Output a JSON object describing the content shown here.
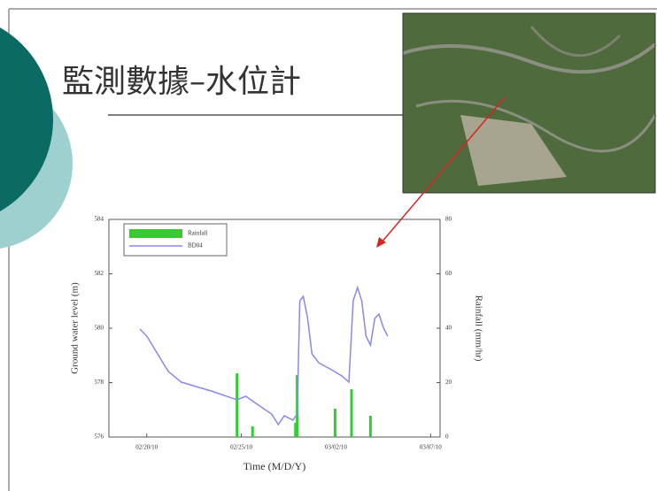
{
  "slide_title": "監測數據–水位計",
  "chart_data": {
    "type": "combo",
    "x_label": "Time (M/D/Y)",
    "y_label": "Ground water level (m)",
    "y2_label": "Rainfall (mm/hr)",
    "xlim": [
      -2,
      15.5
    ],
    "xticks": [
      {
        "value": 0,
        "label": "02/20/10"
      },
      {
        "value": 5,
        "label": "02/25/10"
      },
      {
        "value": 10,
        "label": "03/02/10"
      },
      {
        "value": 15,
        "label": "03/07/10"
      }
    ],
    "ylim": [
      576,
      584
    ],
    "yticks": [
      576,
      578,
      580,
      582,
      584
    ],
    "y2lim": [
      0,
      80
    ],
    "y2ticks": [
      0,
      20,
      40,
      60,
      80
    ],
    "legend": "upper left",
    "series": [
      {
        "name": "Rainfall",
        "type": "bar",
        "axis": "y2",
        "color": "#33cc33",
        "x": [
          4.77,
          5.59,
          7.86,
          7.95,
          9.95,
          10.82,
          11.82
        ],
        "values": [
          23.4,
          3.9,
          5.2,
          22.8,
          10.4,
          17.6,
          7.8
        ]
      },
      {
        "name": "BD04",
        "type": "line",
        "color": "#8888ee",
        "x": [
          -0.36,
          0,
          1.14,
          1.82,
          3.41,
          4.77,
          5.23,
          5.91,
          6.59,
          6.95,
          7.27,
          7.73,
          7.95,
          8.09,
          8.27,
          8.5,
          8.73,
          9.09,
          9.77,
          10.32,
          10.68,
          10.91,
          11.14,
          11.36,
          11.59,
          11.82,
          12.05,
          12.27,
          12.5,
          12.73
        ],
        "values": [
          579.97,
          579.71,
          578.41,
          578.02,
          577.69,
          577.37,
          577.5,
          577.17,
          576.85,
          576.46,
          576.78,
          576.62,
          576.85,
          581.01,
          581.17,
          580.36,
          579.06,
          578.73,
          578.47,
          578.24,
          578.02,
          581.01,
          581.5,
          581.01,
          579.71,
          579.38,
          580.36,
          580.52,
          580.03,
          579.71
        ]
      }
    ]
  }
}
